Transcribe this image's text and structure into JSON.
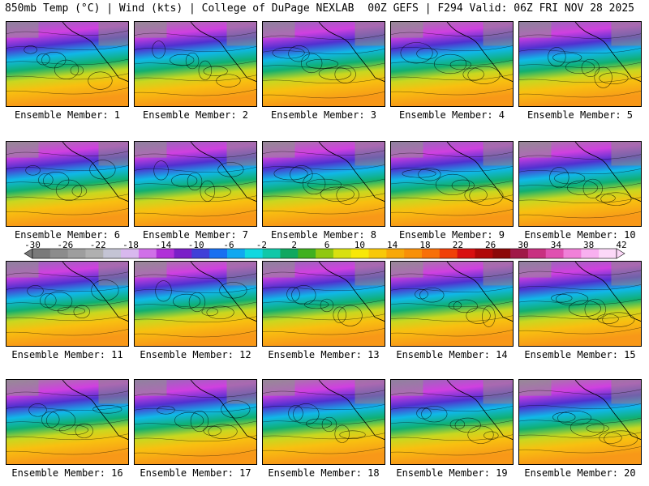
{
  "header": {
    "title_left": "850mb Temp (°C) | Wind (kts) | College of DuPage NEXLAB",
    "title_right": "00Z GEFS | F294 Valid: 06Z FRI NOV 28 2025"
  },
  "members": [
    {
      "label": "Ensemble Member: 1"
    },
    {
      "label": "Ensemble Member: 2"
    },
    {
      "label": "Ensemble Member: 3"
    },
    {
      "label": "Ensemble Member: 4"
    },
    {
      "label": "Ensemble Member: 5"
    },
    {
      "label": "Ensemble Member: 6"
    },
    {
      "label": "Ensemble Member: 7"
    },
    {
      "label": "Ensemble Member: 8"
    },
    {
      "label": "Ensemble Member: 9"
    },
    {
      "label": "Ensemble Member: 10"
    },
    {
      "label": "Ensemble Member: 11"
    },
    {
      "label": "Ensemble Member: 12"
    },
    {
      "label": "Ensemble Member: 13"
    },
    {
      "label": "Ensemble Member: 14"
    },
    {
      "label": "Ensemble Member: 15"
    },
    {
      "label": "Ensemble Member: 16"
    },
    {
      "label": "Ensemble Member: 17"
    },
    {
      "label": "Ensemble Member: 18"
    },
    {
      "label": "Ensemble Member: 19"
    },
    {
      "label": "Ensemble Member: 20"
    }
  ],
  "colorbar": {
    "labels": [
      "-30",
      "-26",
      "-22",
      "-18",
      "-14",
      "-10",
      "-6",
      "-2",
      "2",
      "6",
      "10",
      "14",
      "18",
      "22",
      "26",
      "30",
      "34",
      "38",
      "42"
    ],
    "colors": [
      "#7a7a7a",
      "#8c8c8c",
      "#9e9e9e",
      "#b0b0b0",
      "#c4c4d4",
      "#d8b8ee",
      "#d070e8",
      "#b030d8",
      "#7a20c8",
      "#4040d8",
      "#1870f0",
      "#10a8f0",
      "#10d8e0",
      "#10c8a8",
      "#10a860",
      "#40b020",
      "#90c810",
      "#d8e010",
      "#f8e808",
      "#f8c808",
      "#f8a808",
      "#f89008",
      "#f87008",
      "#f04008",
      "#d81010",
      "#b00808",
      "#8c0808",
      "#a01848",
      "#c83080",
      "#e050b0",
      "#f080d8",
      "#f8b0f0",
      "#fcd8f8"
    ]
  }
}
